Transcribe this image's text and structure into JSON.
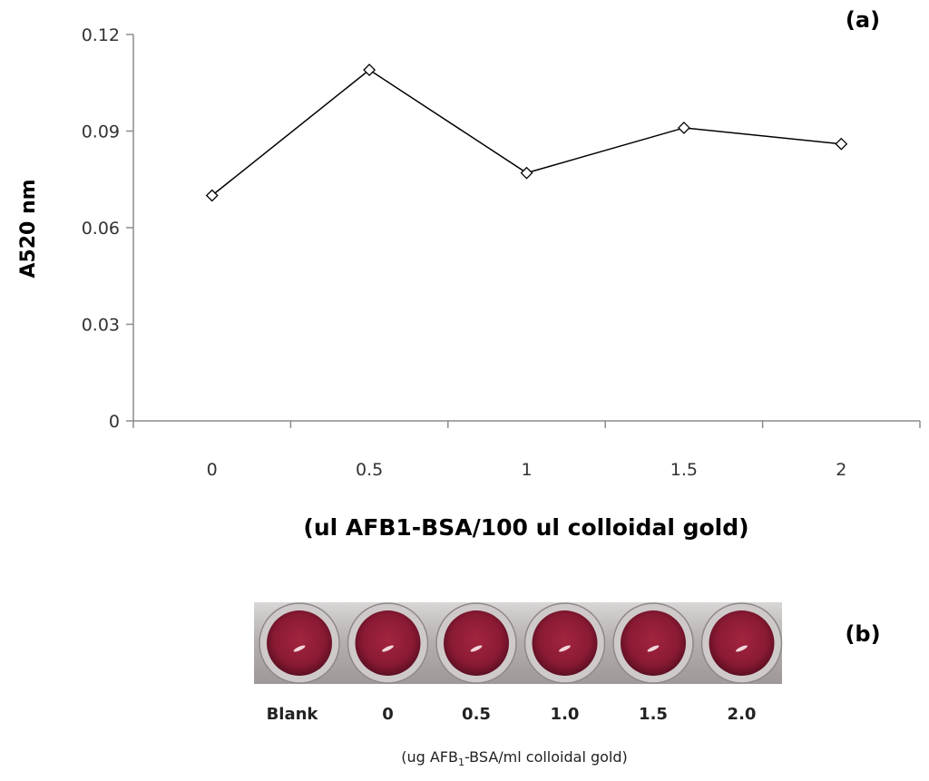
{
  "chart_data": {
    "type": "line",
    "panel_label": "(a)",
    "xlabel": "(ul AFB1-BSA/100  ul colloidal gold)",
    "ylabel": "A520 nm",
    "categories": [
      "0",
      "0.5",
      "1",
      "1.5",
      "2"
    ],
    "x": [
      0,
      0.5,
      1,
      1.5,
      2
    ],
    "series": [
      {
        "values": [
          0.07,
          0.109,
          0.077,
          0.091,
          0.086
        ]
      }
    ],
    "ylim": [
      0,
      0.12
    ],
    "yticks": [
      "0",
      "0.03",
      "0.06",
      "0.09",
      "0.12"
    ],
    "grid": false,
    "legend": "none",
    "colors": {
      "line": "#000000",
      "marker_fill": "#ffffff",
      "axis": "#8c8c8c"
    }
  },
  "plate": {
    "panel_label": "(b)",
    "well_labels": [
      "Blank",
      "0",
      "0.5",
      "1.0",
      "1.5",
      "2.0"
    ],
    "xlabel_pre": "(ug AFB",
    "xlabel_sub": "1",
    "xlabel_post": "-BSA/ml colloidal gold)",
    "colors": {
      "well": "#8a1a33",
      "plate": "#b9b4b4"
    }
  }
}
